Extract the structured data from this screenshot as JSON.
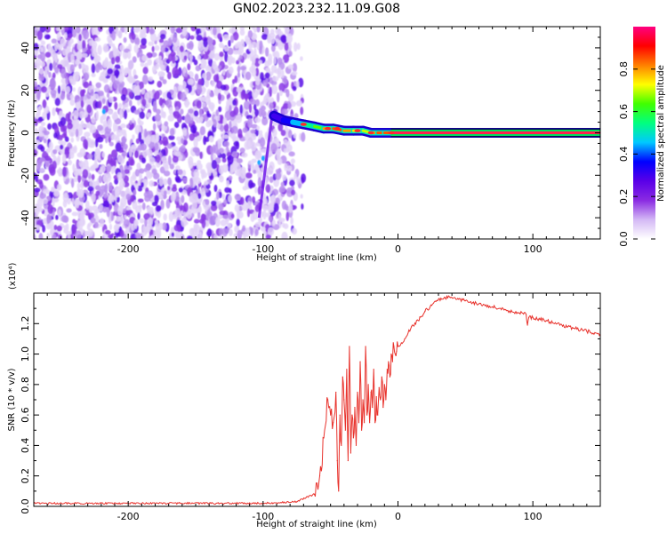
{
  "chart_data": [
    {
      "type": "heatmap",
      "title": "GN02.2023.232.11.09.G08",
      "xlabel": "Height of straight line (km)",
      "ylabel": "Frequency (Hz)",
      "xlim": [
        -270,
        150
      ],
      "ylim": [
        -50,
        50
      ],
      "xticks": [
        -200,
        -100,
        0,
        100
      ],
      "yticks": [
        -40,
        -20,
        0,
        20,
        40
      ],
      "colorbar": {
        "label": "Normalized spectral amplitude",
        "range": [
          0,
          1
        ],
        "ticks": [
          "0.0",
          "0.2",
          "0.4",
          "0.6",
          "0.8"
        ],
        "colors": [
          "#ffffff",
          "#d4b8f5",
          "#8a2be2",
          "#5a00e8",
          "#0000ff",
          "#00c8ff",
          "#00ff80",
          "#40ff00",
          "#ffff00",
          "#ff8000",
          "#ff0000",
          "#ff0080"
        ]
      },
      "noise_region": {
        "x": [
          -270,
          -78
        ],
        "amplitude": 0.2
      },
      "signal_track": {
        "x": [
          -92,
          -85,
          -78,
          -70,
          -62,
          -55,
          -48,
          -40,
          -33,
          -26,
          -20,
          -15,
          -10,
          0,
          150
        ],
        "frequency": [
          8,
          6,
          5,
          4,
          3,
          2,
          2,
          1,
          1,
          1,
          0,
          0,
          0,
          0,
          0
        ],
        "amplitude": [
          0.3,
          0.35,
          0.45,
          0.55,
          0.65,
          0.8,
          0.85,
          0.8,
          0.75,
          0.7,
          0.8,
          0.85,
          0.85,
          1.0,
          1.0
        ]
      }
    },
    {
      "type": "line",
      "xlabel": "Height of straight line (km)",
      "ylabel": "SNR (10 * v/v)",
      "multiplier": "(x10⁴)",
      "xlim": [
        -270,
        150
      ],
      "ylim": [
        0,
        1.4
      ],
      "xticks": [
        -200,
        -100,
        0,
        100
      ],
      "yticks": [
        0.0,
        0.2,
        0.4,
        0.6,
        0.8,
        1.0,
        1.2
      ],
      "color": "#e8322c",
      "series": [
        {
          "x": [
            -270,
            -200,
            -100,
            -75,
            -62,
            -58,
            -55,
            -52,
            -50,
            -48,
            -46,
            -45,
            -44,
            -43,
            -42,
            -41,
            -40,
            -39,
            -38,
            -37,
            -36,
            -35,
            -34,
            -33,
            -32,
            -31,
            -30,
            -29,
            -28,
            -27,
            -26,
            -25,
            -24,
            -23,
            -22,
            -21,
            -20,
            -19,
            -18,
            -17,
            -16,
            -15,
            -14,
            -13,
            -12,
            -11,
            -10,
            -9,
            -8,
            -7,
            -6,
            -5,
            -4,
            -3,
            -2,
            -1,
            0,
            5,
            10,
            15,
            20,
            25,
            30,
            35,
            40,
            45,
            50,
            60,
            70,
            80,
            90,
            95,
            96,
            97,
            100,
            110,
            120,
            130,
            140,
            150
          ],
          "y": [
            0.02,
            0.02,
            0.02,
            0.03,
            0.08,
            0.2,
            0.45,
            0.7,
            0.6,
            0.55,
            0.75,
            0.3,
            0.1,
            0.6,
            0.4,
            0.85,
            0.7,
            0.5,
            0.9,
            0.3,
            1.05,
            0.35,
            0.6,
            0.45,
            0.65,
            0.4,
            0.75,
            0.55,
            0.95,
            0.5,
            0.7,
            0.55,
            1.05,
            0.6,
            0.8,
            0.55,
            0.75,
            0.65,
            0.9,
            0.55,
            0.72,
            0.6,
            0.78,
            0.7,
            0.85,
            0.65,
            0.8,
            0.7,
            0.9,
            0.95,
            0.85,
            1.0,
            0.95,
            1.05,
            1.0,
            1.02,
            1.05,
            1.1,
            1.18,
            1.22,
            1.28,
            1.32,
            1.36,
            1.37,
            1.37,
            1.36,
            1.35,
            1.33,
            1.31,
            1.29,
            1.27,
            1.26,
            1.19,
            1.24,
            1.24,
            1.22,
            1.19,
            1.17,
            1.15,
            1.13
          ]
        }
      ]
    }
  ]
}
